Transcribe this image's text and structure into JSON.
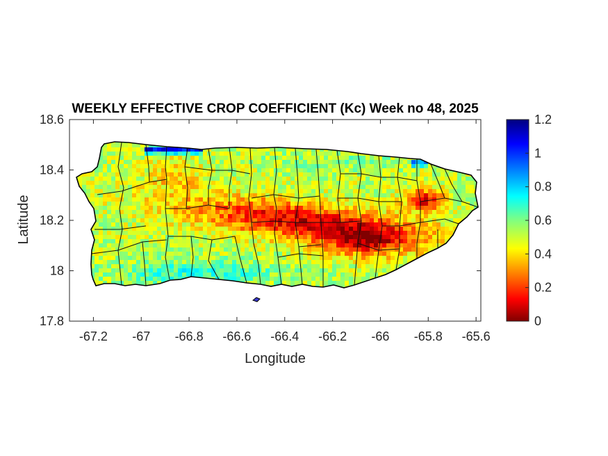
{
  "chart_data": {
    "type": "heatmap",
    "title": "WEEKLY EFFECTIVE CROP COEFFICIENT (Kc) Week no 48, 2025",
    "xlabel": "Longitude",
    "ylabel": "Latitude",
    "xlim": [
      -67.3,
      -65.58
    ],
    "ylim": [
      17.8,
      18.6
    ],
    "xticks": [
      -67.2,
      -67,
      -66.8,
      -66.6,
      -66.4,
      -66.2,
      -66,
      -65.8,
      -65.6
    ],
    "xtick_labels": [
      "-67.2",
      "-67",
      "-66.8",
      "-66.6",
      "-66.4",
      "-66.2",
      "-66",
      "-65.8",
      "-65.6"
    ],
    "yticks": [
      18.6,
      18.4,
      18.2,
      18,
      17.8
    ],
    "ytick_labels": [
      "18.6",
      "18.4",
      "18.2",
      "18",
      "17.8"
    ],
    "colorbar": {
      "colormap": "jet",
      "range": [
        0,
        1.2
      ],
      "ticks": [
        0,
        0.2,
        0.4,
        0.6,
        0.8,
        1,
        1.2
      ],
      "tick_labels": [
        "0",
        "0.2",
        "0.4",
        "0.6",
        "0.8",
        "1",
        "1.2"
      ],
      "placement": "right"
    },
    "region": "Puerto Rico",
    "overlay": "municipality boundaries"
  }
}
